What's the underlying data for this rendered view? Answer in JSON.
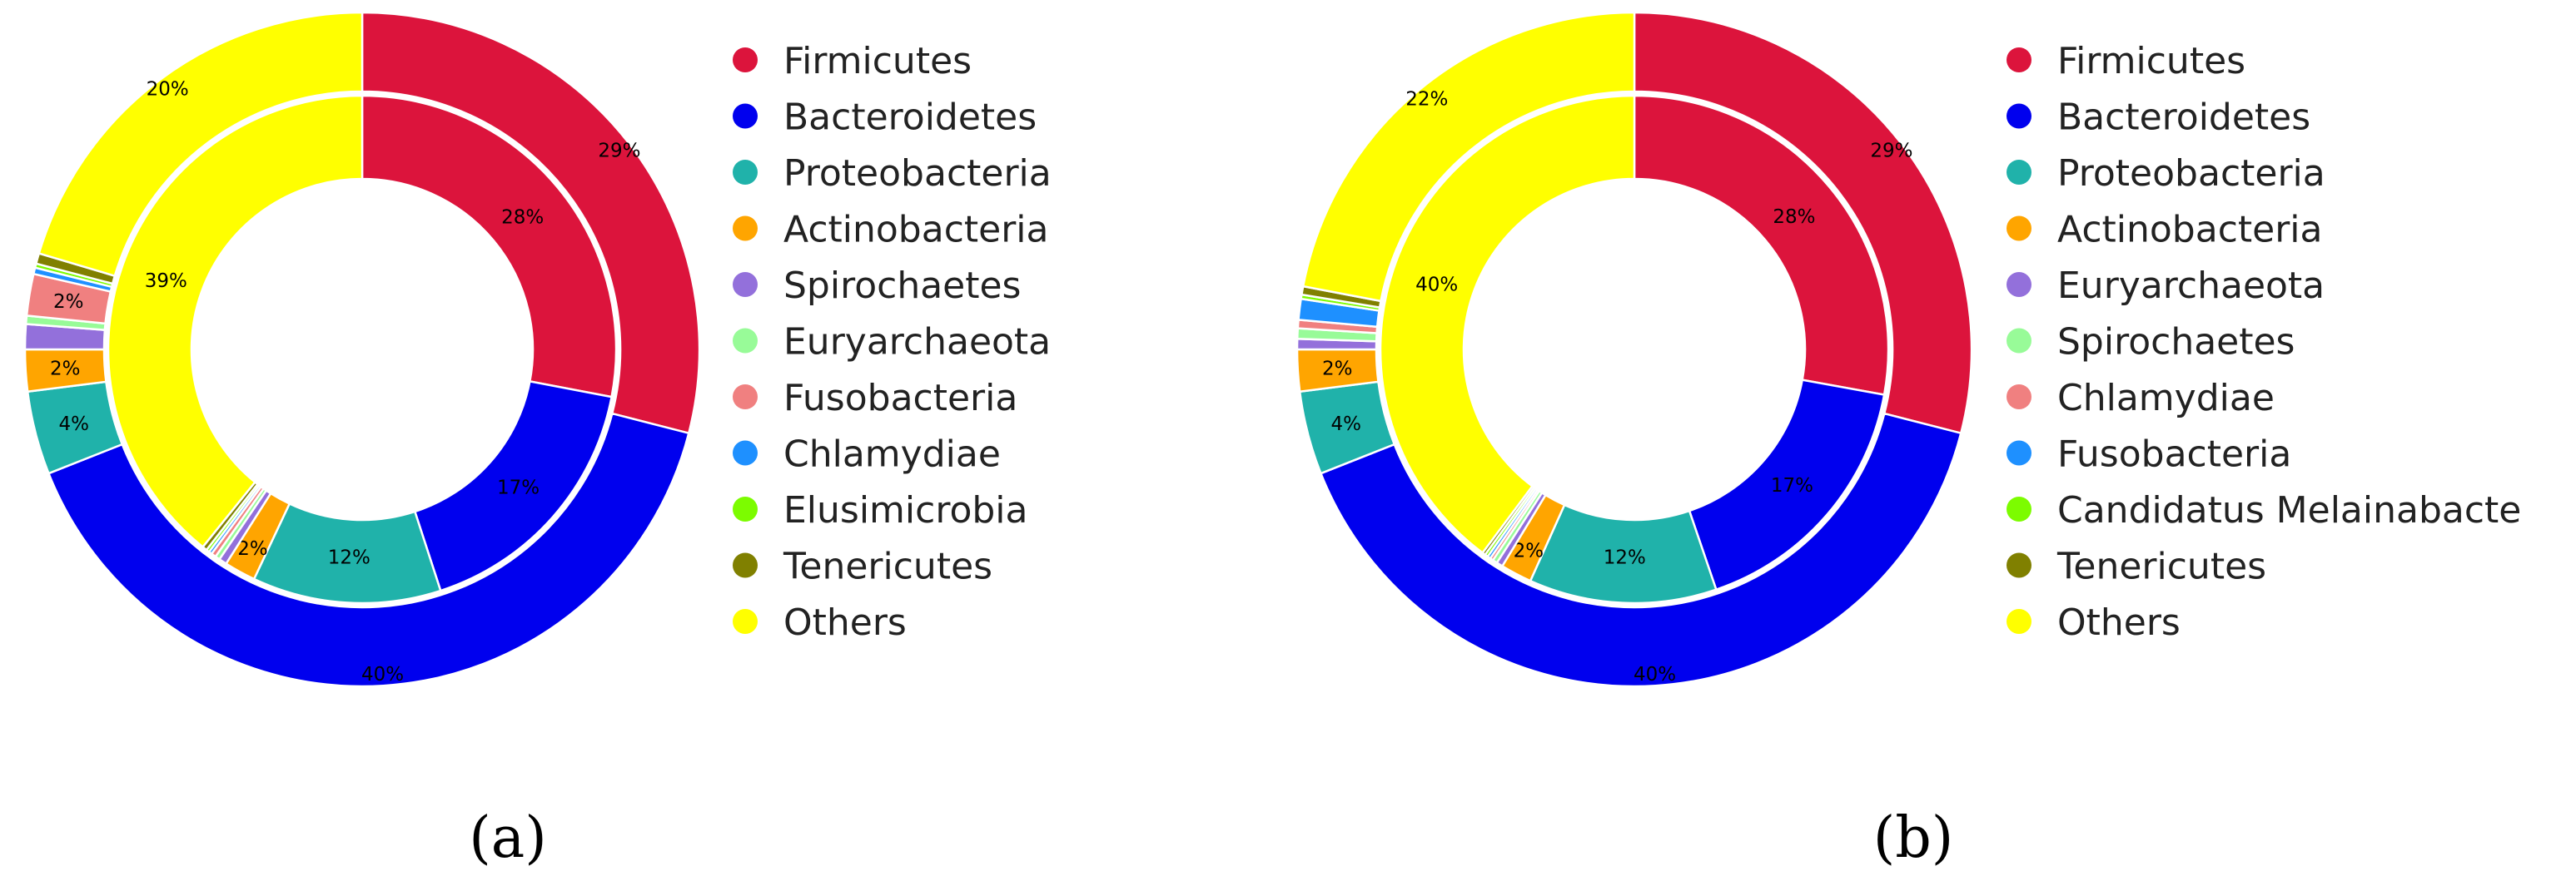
{
  "chart_data": [
    {
      "type": "pie",
      "caption": "(a)",
      "legend": [
        "Firmicutes",
        "Bacteroidetes",
        "Proteobacteria",
        "Actinobacteria",
        "Spirochaetes",
        "Euryarchaeota",
        "Fusobacteria",
        "Chlamydiae",
        "Elusimicrobia",
        "Tenericutes",
        "Others"
      ],
      "rings": [
        {
          "name": "outer",
          "segments": [
            {
              "category": "Firmicutes",
              "value": 29,
              "label": "29%",
              "color": "#dc143c"
            },
            {
              "category": "Bacteroidetes",
              "value": 40,
              "label": "40%",
              "color": "#0000ee"
            },
            {
              "category": "Proteobacteria",
              "value": 4,
              "label": "4%",
              "color": "#20b2aa"
            },
            {
              "category": "Actinobacteria",
              "value": 2,
              "label": "2%",
              "color": "#ffa500"
            },
            {
              "category": "Spirochaetes",
              "value": 1.2,
              "label": "",
              "color": "#9370db"
            },
            {
              "category": "Euryarchaeota",
              "value": 0.4,
              "label": "",
              "color": "#98fb98"
            },
            {
              "category": "Fusobacteria",
              "value": 2,
              "label": "2%",
              "color": "#f08080"
            },
            {
              "category": "Chlamydiae",
              "value": 0.3,
              "label": "",
              "color": "#1e90ff"
            },
            {
              "category": "Elusimicrobia",
              "value": 0.2,
              "label": "",
              "color": "#7cfc00"
            },
            {
              "category": "Tenericutes",
              "value": 0.5,
              "label": "",
              "color": "#808000"
            },
            {
              "category": "Others",
              "value": 20.4,
              "label": "20%",
              "color": "#ffff00"
            }
          ]
        },
        {
          "name": "inner",
          "segments": [
            {
              "category": "Firmicutes",
              "value": 28,
              "label": "28%",
              "color": "#dc143c"
            },
            {
              "category": "Bacteroidetes",
              "value": 17,
              "label": "17%",
              "color": "#0000ee"
            },
            {
              "category": "Proteobacteria",
              "value": 12,
              "label": "12%",
              "color": "#20b2aa"
            },
            {
              "category": "Actinobacteria",
              "value": 2,
              "label": "2%",
              "color": "#ffa500"
            },
            {
              "category": "Spirochaetes",
              "value": 0.5,
              "label": "",
              "color": "#9370db"
            },
            {
              "category": "Euryarchaeota",
              "value": 0.3,
              "label": "",
              "color": "#98fb98"
            },
            {
              "category": "Fusobacteria",
              "value": 0.3,
              "label": "",
              "color": "#f08080"
            },
            {
              "category": "Chlamydiae",
              "value": 0.2,
              "label": "",
              "color": "#1e90ff"
            },
            {
              "category": "Elusimicrobia",
              "value": 0.2,
              "label": "",
              "color": "#7cfc00"
            },
            {
              "category": "Tenericutes",
              "value": 0.3,
              "label": "",
              "color": "#808000"
            },
            {
              "category": "Others",
              "value": 39.2,
              "label": "39%",
              "color": "#ffff00"
            }
          ]
        }
      ]
    },
    {
      "type": "pie",
      "caption": "(b)",
      "legend": [
        "Firmicutes",
        "Bacteroidetes",
        "Proteobacteria",
        "Actinobacteria",
        "Euryarchaeota",
        "Spirochaetes",
        "Chlamydiae",
        "Fusobacteria",
        "Candidatus Melainabacte",
        "Tenericutes",
        "Others"
      ],
      "rings": [
        {
          "name": "outer",
          "segments": [
            {
              "category": "Firmicutes",
              "value": 29,
              "label": "29%",
              "color": "#dc143c"
            },
            {
              "category": "Bacteroidetes",
              "value": 40,
              "label": "40%",
              "color": "#0000ee"
            },
            {
              "category": "Proteobacteria",
              "value": 4,
              "label": "4%",
              "color": "#20b2aa"
            },
            {
              "category": "Actinobacteria",
              "value": 2,
              "label": "2%",
              "color": "#ffa500"
            },
            {
              "category": "Euryarchaeota",
              "value": 0.5,
              "label": "",
              "color": "#9370db"
            },
            {
              "category": "Spirochaetes",
              "value": 0.5,
              "label": "",
              "color": "#98fb98"
            },
            {
              "category": "Chlamydiae",
              "value": 0.4,
              "label": "",
              "color": "#f08080"
            },
            {
              "category": "Fusobacteria",
              "value": 1.0,
              "label": "",
              "color": "#1e90ff"
            },
            {
              "category": "Candidatus Melainabacte",
              "value": 0.2,
              "label": "",
              "color": "#7cfc00"
            },
            {
              "category": "Tenericutes",
              "value": 0.4,
              "label": "",
              "color": "#808000"
            },
            {
              "category": "Others",
              "value": 22,
              "label": "22%",
              "color": "#ffff00"
            }
          ]
        },
        {
          "name": "inner",
          "segments": [
            {
              "category": "Firmicutes",
              "value": 28,
              "label": "28%",
              "color": "#dc143c"
            },
            {
              "category": "Bacteroidetes",
              "value": 17,
              "label": "17%",
              "color": "#0000ee"
            },
            {
              "category": "Proteobacteria",
              "value": 12,
              "label": "12%",
              "color": "#20b2aa"
            },
            {
              "category": "Actinobacteria",
              "value": 2,
              "label": "2%",
              "color": "#ffa500"
            },
            {
              "category": "Euryarchaeota",
              "value": 0.4,
              "label": "",
              "color": "#9370db"
            },
            {
              "category": "Spirochaetes",
              "value": 0.3,
              "label": "",
              "color": "#98fb98"
            },
            {
              "category": "Chlamydiae",
              "value": 0.2,
              "label": "",
              "color": "#f08080"
            },
            {
              "category": "Fusobacteria",
              "value": 0.2,
              "label": "",
              "color": "#1e90ff"
            },
            {
              "category": "Candidatus Melainabacte",
              "value": 0.2,
              "label": "",
              "color": "#7cfc00"
            },
            {
              "category": "Tenericutes",
              "value": 0.2,
              "label": "",
              "color": "#808000"
            },
            {
              "category": "Others",
              "value": 40,
              "label": "40%",
              "color": "#ffff00"
            }
          ]
        }
      ]
    }
  ]
}
